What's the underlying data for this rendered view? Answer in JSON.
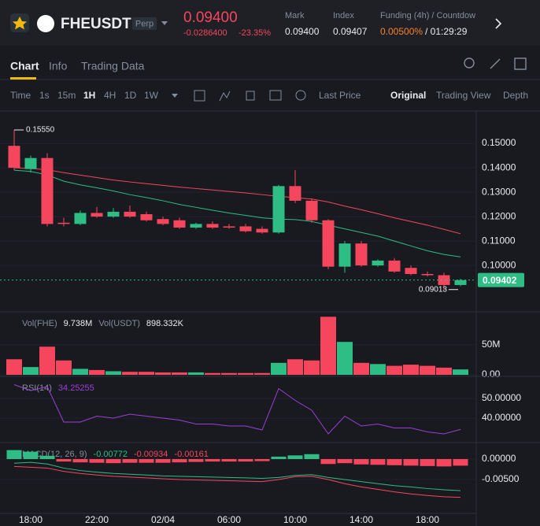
{
  "header": {
    "symbol": "FHEUSDT",
    "badge": "Perp",
    "price": "0.09400",
    "change": "-0.0286400",
    "change_pct": "-23.35%",
    "mark_label": "Mark",
    "mark": "0.09400",
    "index_label": "Index",
    "index": "0.09407",
    "funding_label": "Funding (4h) / Countdow",
    "funding": "0.00500%",
    "countdown": "/ 01:29:29"
  },
  "tabs": [
    "Chart",
    "Info",
    "Trading Data"
  ],
  "toolbar": {
    "intervals": [
      "Time",
      "1s",
      "15m",
      "1H",
      "4H",
      "1D",
      "1W"
    ],
    "price_mode": "Last Price",
    "views": [
      "Original",
      "Trading View",
      "Depth"
    ]
  },
  "chart_data": [
    {
      "type": "candlestick",
      "up_color": "#2ebd85",
      "down_color": "#f6465d",
      "categories": [
        null,
        "18:00",
        null,
        null,
        null,
        "22:00",
        null,
        null,
        null,
        "02/04",
        null,
        null,
        null,
        "06:00",
        null,
        null,
        null,
        "10:00",
        null,
        null,
        null,
        "14:00",
        null,
        null,
        null,
        "18:00",
        null,
        null
      ],
      "open": [
        0.149,
        0.1395,
        0.144,
        0.1175,
        0.117,
        0.1215,
        0.12,
        0.122,
        0.121,
        0.119,
        0.1185,
        0.1155,
        0.117,
        0.116,
        0.116,
        0.115,
        0.1135,
        0.1325,
        0.1265,
        0.1185,
        0.0995,
        0.109,
        0.1,
        0.102,
        0.099,
        0.0965,
        0.096,
        0.092
      ],
      "high": [
        0.1555,
        0.145,
        0.146,
        0.1195,
        0.1225,
        0.124,
        0.1235,
        0.1245,
        0.122,
        0.12,
        0.1195,
        0.1175,
        0.118,
        0.117,
        0.117,
        0.116,
        0.133,
        0.139,
        0.1275,
        0.119,
        0.11,
        0.11,
        0.1025,
        0.103,
        0.1,
        0.0975,
        0.097,
        0.0945
      ],
      "low": [
        0.139,
        0.138,
        0.116,
        0.116,
        0.1165,
        0.1195,
        0.1195,
        0.1195,
        0.118,
        0.1165,
        0.115,
        0.115,
        0.115,
        0.115,
        0.1135,
        0.113,
        0.113,
        0.1255,
        0.1175,
        0.0985,
        0.097,
        0.0995,
        0.0995,
        0.097,
        0.096,
        0.0955,
        0.09013,
        0.0915
      ],
      "close": [
        0.14,
        0.144,
        0.117,
        0.117,
        0.1215,
        0.12,
        0.122,
        0.12,
        0.1185,
        0.117,
        0.1155,
        0.117,
        0.1155,
        0.1155,
        0.114,
        0.1135,
        0.1325,
        0.1265,
        0.1185,
        0.0995,
        0.109,
        0.1,
        0.102,
        0.0975,
        0.0965,
        0.096,
        0.092,
        0.094
      ],
      "lines": [
        {
          "color": "#f6465d",
          "values": [
            0.14,
            0.1397,
            0.1392,
            0.138,
            0.137,
            0.136,
            0.135,
            0.1342,
            0.1335,
            0.1328,
            0.1321,
            0.1315,
            0.1309,
            0.1303,
            0.1297,
            0.129,
            0.1283,
            0.1278,
            0.1272,
            0.126,
            0.1243,
            0.1228,
            0.1212,
            0.1195,
            0.118,
            0.1165,
            0.1148,
            0.113
          ]
        },
        {
          "color": "#2ebd85",
          "values": [
            0.139,
            0.1385,
            0.1371,
            0.1345,
            0.133,
            0.1318,
            0.1305,
            0.129,
            0.1278,
            0.1265,
            0.125,
            0.1238,
            0.1226,
            0.1215,
            0.1205,
            0.1195,
            0.119,
            0.1188,
            0.118,
            0.1165,
            0.115,
            0.1135,
            0.112,
            0.11,
            0.108,
            0.106,
            0.1045,
            0.1035
          ]
        }
      ],
      "ylim": [
        0.0823,
        0.1626
      ],
      "yticks": [
        {
          "value": 0.1,
          "label": "0.10000"
        },
        {
          "value": 0.11,
          "label": "0.11000"
        },
        {
          "value": 0.12,
          "label": "0.12000"
        },
        {
          "value": 0.13,
          "label": "0.13000"
        },
        {
          "value": 0.14,
          "label": "0.14000"
        },
        {
          "value": 0.15,
          "label": "0.15000"
        }
      ],
      "high_label": {
        "value": 0.1555,
        "label": "0.15550"
      },
      "low_label": 0.09013,
      "last_price": 0.09402
    },
    {
      "type": "bar",
      "legend": [
        "Vol(FHE)",
        "9.738M",
        "Vol(USDT)",
        "898.332K"
      ],
      "values": [
        26000000,
        13000000,
        47000000,
        24000000,
        10000000,
        8000000,
        6000000,
        5000000,
        5000000,
        4000000,
        4000000,
        4000000,
        3000000,
        3000000,
        3000000,
        3000000,
        20000000,
        26000000,
        24000000,
        97000000,
        55000000,
        20000000,
        18000000,
        15000000,
        17000000,
        15000000,
        12000000,
        9000000
      ],
      "ylim": [
        0,
        100000000
      ],
      "yticks": [
        {
          "value": 0,
          "label": "0.00"
        },
        {
          "value": 50000000,
          "label": "50M"
        }
      ]
    },
    {
      "type": "line",
      "legend": [
        "RSI(14)",
        "34.25255"
      ],
      "color": "#9c3fd6",
      "values": [
        57,
        54,
        56,
        38,
        38,
        41,
        40,
        42,
        41,
        40,
        39,
        37,
        37,
        36,
        36,
        34,
        55,
        49,
        44,
        32,
        41,
        36,
        37,
        35,
        35,
        33,
        32,
        34.25255
      ],
      "ylim": [
        27.6,
        59.6
      ],
      "yticks": [
        {
          "value": 40,
          "label": "40.00000"
        },
        {
          "value": 50,
          "label": "50.00000"
        }
      ]
    },
    {
      "type": "macd",
      "legend": [
        "MACD(12, 26, 9)",
        "-0.00772",
        "-0.00934",
        "-0.00161"
      ],
      "histogram": [
        0.0022,
        0.0018,
        0.0008,
        -0.0006,
        -0.0008,
        -0.0009,
        -0.001,
        -0.0009,
        -0.0009,
        -0.0009,
        -0.0008,
        -0.0007,
        -0.0006,
        -0.0006,
        -0.0006,
        -0.0005,
        0.0006,
        0.0009,
        0.0012,
        -0.0012,
        -0.001,
        -0.0013,
        -0.0014,
        -0.0015,
        -0.0016,
        -0.0017,
        -0.0018,
        -0.00161
      ],
      "dif": [
        -0.001,
        -0.0008,
        -0.0012,
        -0.0022,
        -0.0028,
        -0.0032,
        -0.0035,
        -0.0037,
        -0.0039,
        -0.0041,
        -0.0042,
        -0.0043,
        -0.0044,
        -0.0045,
        -0.0046,
        -0.0047,
        -0.0045,
        -0.004,
        -0.0038,
        -0.0045,
        -0.005,
        -0.0055,
        -0.006,
        -0.0065,
        -0.0068,
        -0.0072,
        -0.0075,
        -0.00772
      ],
      "dea": [
        -0.0018,
        -0.002,
        -0.0022,
        -0.003,
        -0.0035,
        -0.0039,
        -0.0042,
        -0.0044,
        -0.0046,
        -0.0048,
        -0.005,
        -0.0051,
        -0.0052,
        -0.0053,
        -0.0054,
        -0.0055,
        -0.005,
        -0.0043,
        -0.0042,
        -0.005,
        -0.006,
        -0.0068,
        -0.0074,
        -0.008,
        -0.0085,
        -0.0089,
        -0.0092,
        -0.00934
      ],
      "dif_color": "#2ebd85",
      "dea_color": "#f6465d",
      "ylim": [
        -0.01327,
        0.00327
      ],
      "yticks": [
        {
          "value": -0.005,
          "label": "-0.00500"
        },
        {
          "value": 0,
          "label": "0.00000"
        }
      ]
    }
  ]
}
